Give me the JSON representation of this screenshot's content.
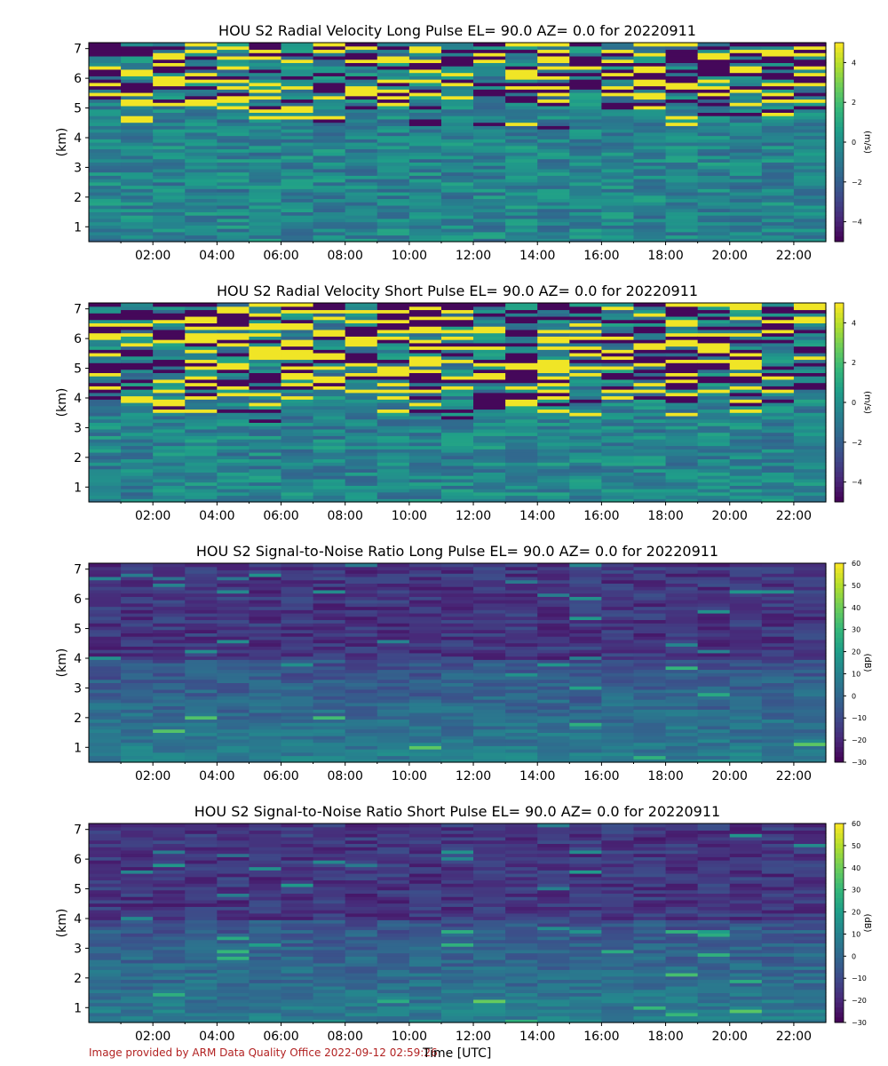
{
  "footer": {
    "credit": "Image provided by ARM Data Quality Office 2022-09-12 02:59:26",
    "x_axis_title": "Time [UTC]"
  },
  "chart_data": [
    {
      "type": "heatmap",
      "title": "HOU S2 Radial Velocity Long Pulse EL= 90.0 AZ= 0.0 for 20220911",
      "ylabel": "(km)",
      "ylim": [
        0.5,
        7.2
      ],
      "yticks": [
        "1",
        "2",
        "3",
        "4",
        "5",
        "6",
        "7"
      ],
      "xticks": [
        "02:00",
        "04:00",
        "06:00",
        "08:00",
        "10:00",
        "12:00",
        "14:00",
        "16:00",
        "18:00",
        "20:00",
        "22:00"
      ],
      "colorbar": {
        "label": "(m/s)",
        "range": [
          -5,
          5
        ],
        "ticks": [
          "4",
          "2",
          "0",
          "−2",
          "−4"
        ],
        "colormap": "viridis"
      },
      "grid": false
    },
    {
      "type": "heatmap",
      "title": "HOU S2 Radial Velocity Short Pulse EL= 90.0 AZ= 0.0 for 20220911",
      "ylabel": "(km)",
      "ylim": [
        0.5,
        7.2
      ],
      "yticks": [
        "1",
        "2",
        "3",
        "4",
        "5",
        "6",
        "7"
      ],
      "xticks": [
        "02:00",
        "04:00",
        "06:00",
        "08:00",
        "10:00",
        "12:00",
        "14:00",
        "16:00",
        "18:00",
        "20:00",
        "22:00"
      ],
      "colorbar": {
        "label": "(m/s)",
        "range": [
          -5,
          5
        ],
        "ticks": [
          "4",
          "2",
          "0",
          "−2",
          "−4"
        ],
        "colormap": "viridis"
      },
      "grid": false
    },
    {
      "type": "heatmap",
      "title": "HOU S2 Signal-to-Noise Ratio Long Pulse EL= 90.0 AZ= 0.0 for 20220911",
      "ylabel": "(km)",
      "ylim": [
        0.5,
        7.2
      ],
      "yticks": [
        "1",
        "2",
        "3",
        "4",
        "5",
        "6",
        "7"
      ],
      "xticks": [
        "02:00",
        "04:00",
        "06:00",
        "08:00",
        "10:00",
        "12:00",
        "14:00",
        "16:00",
        "18:00",
        "20:00",
        "22:00"
      ],
      "colorbar": {
        "label": "(dB)",
        "range": [
          -30,
          60
        ],
        "ticks": [
          "60",
          "50",
          "40",
          "30",
          "20",
          "10",
          "0",
          "−10",
          "−20",
          "−30"
        ],
        "colormap": "viridis"
      },
      "grid": false
    },
    {
      "type": "heatmap",
      "title": "HOU S2 Signal-to-Noise Ratio Short Pulse EL= 90.0 AZ= 0.0 for 20220911",
      "ylabel": "(km)",
      "ylim": [
        0.5,
        7.2
      ],
      "yticks": [
        "1",
        "2",
        "3",
        "4",
        "5",
        "6",
        "7"
      ],
      "xticks": [
        "02:00",
        "04:00",
        "06:00",
        "08:00",
        "10:00",
        "12:00",
        "14:00",
        "16:00",
        "18:00",
        "20:00",
        "22:00"
      ],
      "colorbar": {
        "label": "(dB)",
        "range": [
          -30,
          60
        ],
        "ticks": [
          "60",
          "50",
          "40",
          "30",
          "20",
          "10",
          "0",
          "−10",
          "−20",
          "−30"
        ],
        "colormap": "viridis"
      },
      "grid": false
    }
  ]
}
